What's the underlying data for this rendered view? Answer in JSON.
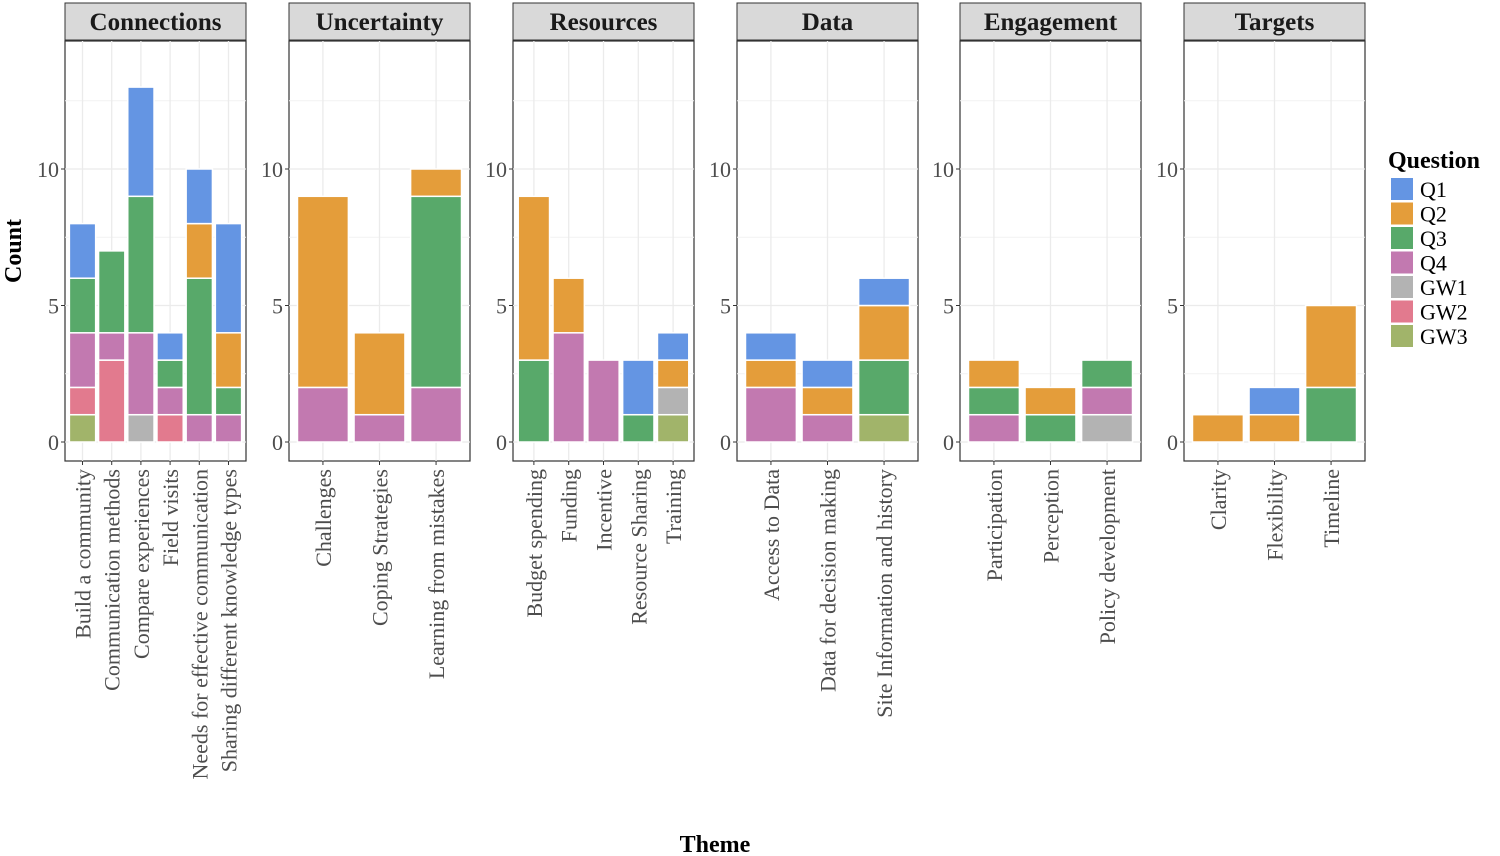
{
  "chart_data": {
    "type": "bar",
    "stacked": true,
    "faceted": true,
    "xlabel": "Theme",
    "ylabel": "Count",
    "ylim": [
      0,
      14.3
    ],
    "yticks": [
      0,
      5,
      10
    ],
    "grid": true,
    "legend": {
      "title": "Question",
      "position": "right",
      "entries": [
        "Q1",
        "Q2",
        "Q3",
        "Q4",
        "GW1",
        "GW2",
        "GW3"
      ]
    },
    "colors": {
      "Q1": "#6495e3",
      "Q2": "#e49d3a",
      "Q3": "#58a96a",
      "Q4": "#c279b0",
      "GW1": "#b3b3b3",
      "GW2": "#e27a8e",
      "GW3": "#a1b46a"
    },
    "stack_order_bottom_to_top": [
      "GW3",
      "GW2",
      "GW1",
      "Q4",
      "Q3",
      "Q2",
      "Q1"
    ],
    "panels": [
      {
        "title": "Connections",
        "categories": [
          "Build a community",
          "Communication methods",
          "Compare experiences",
          "Field visits",
          "Needs for effective communication",
          "Sharing different knowledge types"
        ],
        "series": {
          "Q1": [
            2,
            0,
            4,
            1,
            2,
            4
          ],
          "Q2": [
            0,
            0,
            0,
            0,
            2,
            2
          ],
          "Q3": [
            2,
            3,
            5,
            1,
            5,
            1
          ],
          "Q4": [
            2,
            1,
            3,
            1,
            1,
            1
          ],
          "GW1": [
            0,
            0,
            1,
            0,
            0,
            0
          ],
          "GW2": [
            1,
            3,
            0,
            1,
            0,
            0
          ],
          "GW3": [
            1,
            0,
            0,
            0,
            0,
            0
          ]
        }
      },
      {
        "title": "Uncertainty",
        "categories": [
          "Challenges",
          "Coping Strategies",
          "Learning from mistakes"
        ],
        "series": {
          "Q1": [
            0,
            0,
            0
          ],
          "Q2": [
            7,
            3,
            1
          ],
          "Q3": [
            0,
            0,
            7
          ],
          "Q4": [
            2,
            1,
            2
          ],
          "GW1": [
            0,
            0,
            0
          ],
          "GW2": [
            0,
            0,
            0
          ],
          "GW3": [
            0,
            0,
            0
          ]
        }
      },
      {
        "title": "Resources",
        "categories": [
          "Budget spending",
          "Funding",
          "Incentive",
          "Resource Sharing",
          "Training"
        ],
        "series": {
          "Q1": [
            0,
            0,
            0,
            2,
            1
          ],
          "Q2": [
            6,
            2,
            0,
            0,
            1
          ],
          "Q3": [
            3,
            0,
            0,
            1,
            0
          ],
          "Q4": [
            0,
            4,
            3,
            0,
            0
          ],
          "GW1": [
            0,
            0,
            0,
            0,
            1
          ],
          "GW2": [
            0,
            0,
            0,
            0,
            0
          ],
          "GW3": [
            0,
            0,
            0,
            0,
            1
          ]
        }
      },
      {
        "title": "Data",
        "categories": [
          "Access to Data",
          "Data for decision making",
          "Site Information and history"
        ],
        "series": {
          "Q1": [
            1,
            1,
            1
          ],
          "Q2": [
            1,
            1,
            2
          ],
          "Q3": [
            0,
            0,
            2
          ],
          "Q4": [
            2,
            1,
            0
          ],
          "GW1": [
            0,
            0,
            0
          ],
          "GW2": [
            0,
            0,
            0
          ],
          "GW3": [
            0,
            0,
            1
          ]
        }
      },
      {
        "title": "Engagement",
        "categories": [
          "Participation",
          "Perception",
          "Policy development"
        ],
        "series": {
          "Q1": [
            0,
            0,
            0
          ],
          "Q2": [
            1,
            1,
            0
          ],
          "Q3": [
            1,
            1,
            1
          ],
          "Q4": [
            1,
            0,
            1
          ],
          "GW1": [
            0,
            0,
            1
          ],
          "GW2": [
            0,
            0,
            0
          ],
          "GW3": [
            0,
            0,
            0
          ]
        }
      },
      {
        "title": "Targets",
        "categories": [
          "Clarity",
          "Flexibility",
          "Timeline"
        ],
        "series": {
          "Q1": [
            0,
            1,
            0
          ],
          "Q2": [
            1,
            1,
            3
          ],
          "Q3": [
            0,
            0,
            2
          ],
          "Q4": [
            0,
            0,
            0
          ],
          "GW1": [
            0,
            0,
            0
          ],
          "GW2": [
            0,
            0,
            0
          ],
          "GW3": [
            0,
            0,
            0
          ]
        }
      }
    ]
  }
}
